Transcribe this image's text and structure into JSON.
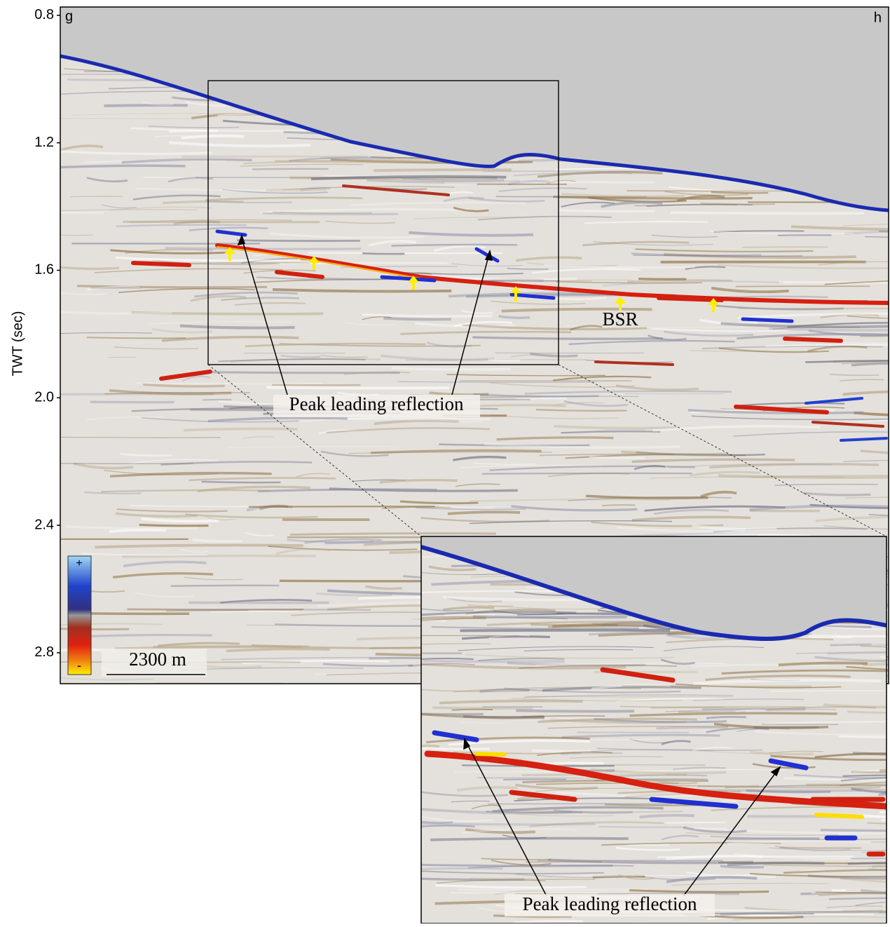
{
  "chart_data": {
    "type": "seismic",
    "ylabel": "TWT (sec)",
    "ylim": [
      0.774,
      2.897
    ],
    "yticks": [
      0.8,
      1.2,
      1.6,
      {
        "value": 2,
        "label": "2.0"
      },
      2.4,
      2.8
    ],
    "panel_labels": [
      "g",
      "h"
    ],
    "annotations": {
      "bsr": "BSR",
      "peak_main": "Peak leading reflection",
      "peak_inset": "Peak leading reflection",
      "scale_bar": "2300 m",
      "colorbar_plus": "+",
      "colorbar_minus": "-"
    }
  }
}
